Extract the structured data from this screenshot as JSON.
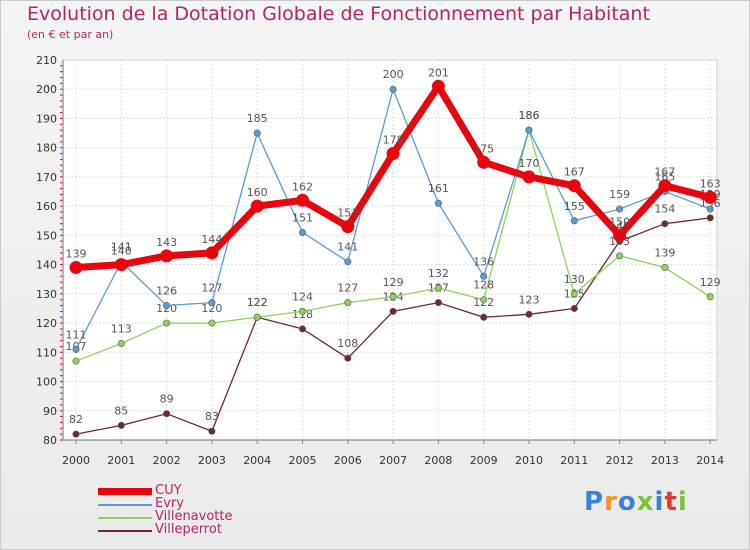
{
  "title": "Evolution de la Dotation Globale de Fonctionnement par Habitant",
  "subtitle": "(en € et par an)",
  "brand": {
    "text": "Proxiti",
    "colors": [
      "#3b7fd6",
      "#f0932b",
      "#3b7fd6",
      "#7cbf3a",
      "#3b7fd6",
      "#e23a2e",
      "#7cbf3a"
    ]
  },
  "chart_data": {
    "type": "line",
    "title": "Evolution de la Dotation Globale de Fonctionnement par Habitant",
    "subtitle": "(en € et par an)",
    "x": [
      "2000",
      "2001",
      "2002",
      "2003",
      "2004",
      "2005",
      "2006",
      "2007",
      "2008",
      "2009",
      "2010",
      "2011",
      "2012",
      "2013",
      "2014"
    ],
    "ylim": [
      80,
      210
    ],
    "yticks": [
      80,
      90,
      100,
      110,
      120,
      130,
      140,
      150,
      160,
      170,
      180,
      190,
      200,
      210
    ],
    "grid": true,
    "legend_position": "bottom-left",
    "series": [
      {
        "name": "CUY",
        "color": "#e8060e",
        "values": [
          139,
          140,
          143,
          144,
          160,
          162,
          153,
          178,
          201,
          175,
          170,
          167,
          150,
          167,
          163
        ]
      },
      {
        "name": "Evry",
        "color": "#5b9bd0",
        "values": [
          111,
          141,
          126,
          127,
          185,
          151,
          141,
          200,
          161,
          136,
          186,
          155,
          159,
          165,
          159
        ]
      },
      {
        "name": "Villenavotte",
        "color": "#8ed15c",
        "values": [
          107,
          113,
          120,
          120,
          122,
          124,
          127,
          129,
          132,
          128,
          186,
          130,
          143,
          139,
          129
        ]
      },
      {
        "name": "Villeperrot",
        "color": "#6e2a2a",
        "values": [
          82,
          85,
          89,
          83,
          122,
          118,
          108,
          124,
          127,
          122,
          123,
          125,
          148,
          154,
          156
        ]
      }
    ]
  }
}
